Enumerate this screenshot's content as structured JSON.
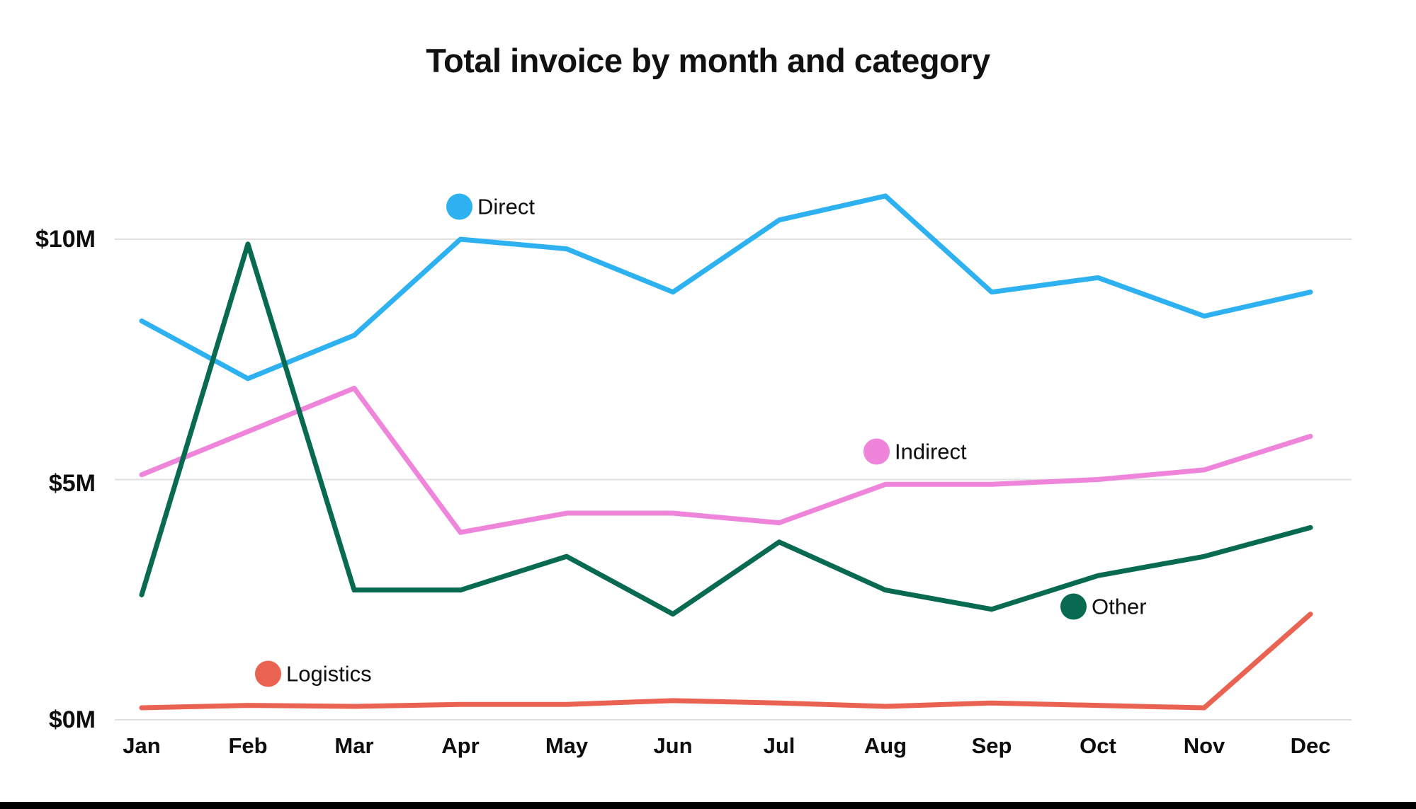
{
  "page": {
    "background_color": "#ffffff",
    "bottom_bar_color": "#000000"
  },
  "chart_data": {
    "type": "line",
    "title": "Total invoice by month and category",
    "xlabel": "",
    "ylabel": "",
    "unit": "$M",
    "categories": [
      "Jan",
      "Feb",
      "Mar",
      "Apr",
      "May",
      "Jun",
      "Jul",
      "Aug",
      "Sep",
      "Oct",
      "Nov",
      "Dec"
    ],
    "series": [
      {
        "name": "Direct",
        "color": "#2DB1F0",
        "values": [
          8.3,
          7.1,
          8.0,
          10.0,
          9.8,
          8.9,
          10.4,
          10.9,
          8.9,
          9.2,
          8.4,
          8.9
        ]
      },
      {
        "name": "Indirect",
        "color": "#EE85DA",
        "values": [
          5.1,
          6.0,
          6.9,
          3.9,
          4.3,
          4.3,
          4.1,
          4.9,
          4.9,
          5.0,
          5.2,
          5.9
        ]
      },
      {
        "name": "Other",
        "color": "#086B51",
        "values": [
          2.6,
          9.9,
          2.7,
          2.7,
          3.4,
          2.2,
          3.7,
          2.7,
          2.3,
          3.0,
          3.4,
          4.0
        ]
      },
      {
        "name": "Logistics",
        "color": "#EA6352",
        "values": [
          0.25,
          0.3,
          0.28,
          0.32,
          0.32,
          0.4,
          0.35,
          0.28,
          0.35,
          0.3,
          0.25,
          2.2
        ]
      }
    ],
    "yticks": [
      {
        "label": "$10M",
        "value": 10
      },
      {
        "label": "$5M",
        "value": 5
      },
      {
        "label": "$0M",
        "value": 0
      }
    ],
    "ylim": [
      0,
      11.5
    ],
    "grid": "horizontal",
    "gridline_color": "#e0e0e0",
    "legend_position": "floating-near-series"
  }
}
